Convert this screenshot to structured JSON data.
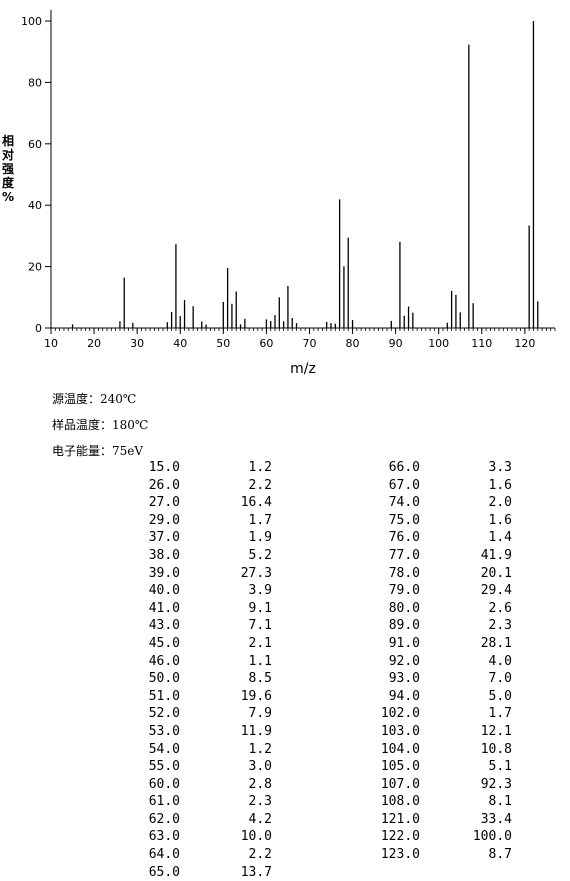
{
  "chart_data": {
    "type": "bar",
    "xlabel": "m/z",
    "ylabel_chars": [
      "相",
      "对",
      "强",
      "度",
      "%"
    ],
    "xlim": [
      10,
      127
    ],
    "ylim": [
      0,
      100
    ],
    "xticks": [
      10,
      20,
      30,
      40,
      50,
      60,
      70,
      80,
      90,
      100,
      110,
      120
    ],
    "yticks": [
      0,
      20,
      40,
      60,
      80,
      100
    ],
    "grid": false,
    "x": [
      15.0,
      26.0,
      27.0,
      29.0,
      37.0,
      38.0,
      39.0,
      40.0,
      41.0,
      43.0,
      45.0,
      46.0,
      50.0,
      51.0,
      52.0,
      53.0,
      54.0,
      55.0,
      60.0,
      61.0,
      62.0,
      63.0,
      64.0,
      65.0,
      66.0,
      67.0,
      74.0,
      75.0,
      76.0,
      77.0,
      78.0,
      79.0,
      80.0,
      89.0,
      91.0,
      92.0,
      93.0,
      94.0,
      102.0,
      103.0,
      104.0,
      105.0,
      107.0,
      108.0,
      121.0,
      122.0,
      123.0
    ],
    "values": [
      1.2,
      2.2,
      16.4,
      1.7,
      1.9,
      5.2,
      27.3,
      3.9,
      9.1,
      7.1,
      2.1,
      1.1,
      8.5,
      19.6,
      7.9,
      11.9,
      1.2,
      3.0,
      2.8,
      2.3,
      4.2,
      10.0,
      2.2,
      13.7,
      3.3,
      1.6,
      2.0,
      1.6,
      1.4,
      41.9,
      20.1,
      29.4,
      2.6,
      2.3,
      28.1,
      4.0,
      7.0,
      5.0,
      1.7,
      12.1,
      10.8,
      5.1,
      92.3,
      8.1,
      33.4,
      100.0,
      8.7
    ]
  },
  "info": {
    "source_temp": "源温度：240℃",
    "sample_temp": "样品温度：180℃",
    "electron_energy": "电子能量：75eV"
  },
  "table": {
    "left": {
      "mz": [
        "15.0",
        "26.0",
        "27.0",
        "29.0",
        "37.0",
        "38.0",
        "39.0",
        "40.0",
        "41.0",
        "43.0",
        "45.0",
        "46.0",
        "50.0",
        "51.0",
        "52.0",
        "53.0",
        "54.0",
        "55.0",
        "60.0",
        "61.0",
        "62.0",
        "63.0",
        "64.0",
        "65.0"
      ],
      "intensity": [
        "1.2",
        "2.2",
        "16.4",
        "1.7",
        "1.9",
        "5.2",
        "27.3",
        "3.9",
        "9.1",
        "7.1",
        "2.1",
        "1.1",
        "8.5",
        "19.6",
        "7.9",
        "11.9",
        "1.2",
        "3.0",
        "2.8",
        "2.3",
        "4.2",
        "10.0",
        "2.2",
        "13.7"
      ]
    },
    "right": {
      "mz": [
        "66.0",
        "67.0",
        "74.0",
        "75.0",
        "76.0",
        "77.0",
        "78.0",
        "79.0",
        "80.0",
        "89.0",
        "91.0",
        "92.0",
        "93.0",
        "94.0",
        "102.0",
        "103.0",
        "104.0",
        "105.0",
        "107.0",
        "108.0",
        "121.0",
        "122.0",
        "123.0"
      ],
      "intensity": [
        "3.3",
        "1.6",
        "2.0",
        "1.6",
        "1.4",
        "41.9",
        "20.1",
        "29.4",
        "2.6",
        "2.3",
        "28.1",
        "4.0",
        "7.0",
        "5.0",
        "1.7",
        "12.1",
        "10.8",
        "5.1",
        "92.3",
        "8.1",
        "33.4",
        "100.0",
        "8.7"
      ]
    }
  }
}
